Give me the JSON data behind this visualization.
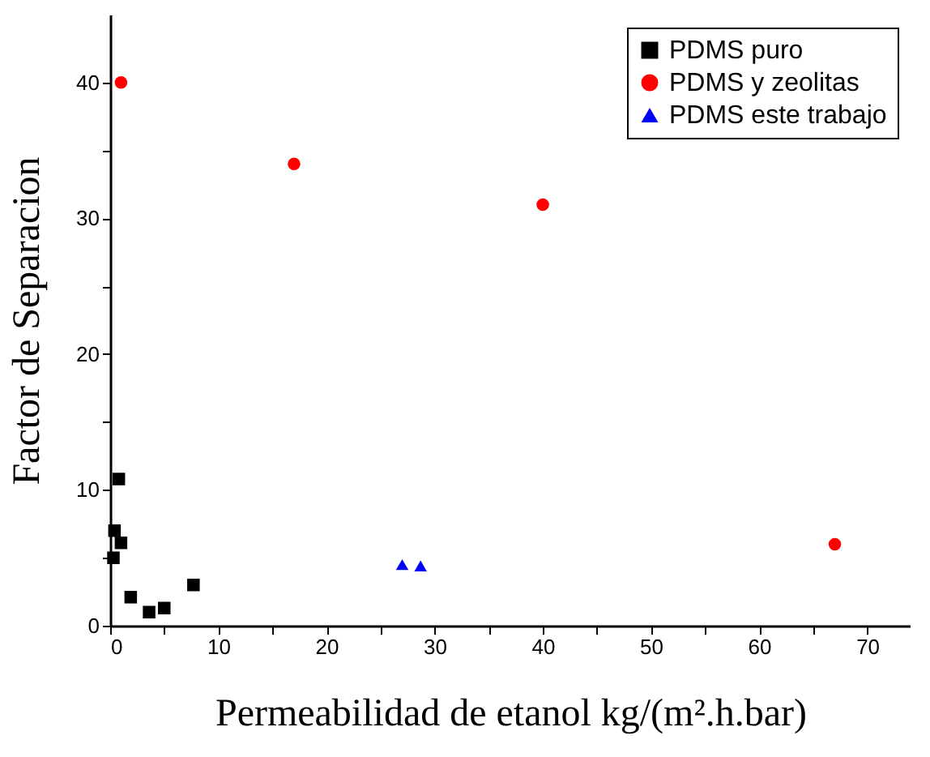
{
  "chart_data": {
    "type": "scatter",
    "xlabel": "Permeabilidad de etanol kg/(m².h.bar)",
    "ylabel": "Factor de Separacion",
    "xlim": [
      0,
      74
    ],
    "ylim": [
      0,
      45
    ],
    "xticks": [
      0,
      {
        "value": 5,
        "label": null
      },
      10,
      {
        "value": 15,
        "label": null
      },
      20,
      {
        "value": 25,
        "label": null
      },
      30,
      {
        "value": 35,
        "label": null
      },
      40,
      {
        "value": 45,
        "label": null
      },
      50,
      {
        "value": 55,
        "label": null
      },
      60,
      {
        "value": 65,
        "label": null
      },
      70
    ],
    "yticks": [
      0,
      {
        "value": 5,
        "label": null
      },
      10,
      {
        "value": 15,
        "label": null
      },
      20,
      {
        "value": 25,
        "label": null
      },
      30,
      {
        "value": 35,
        "label": null
      },
      40
    ],
    "grid": false,
    "legend": "top right",
    "series": [
      {
        "name": "PDMS puro",
        "color": "#000000",
        "marker": "square",
        "x": [
          0.8,
          0.3,
          0.4,
          1.0,
          1.9,
          3.6,
          5.0,
          7.7
        ],
        "values": [
          10.8,
          5,
          7,
          6.1,
          2.1,
          1.0,
          1.3,
          3.0
        ]
      },
      {
        "name": "PDMS y zeolitas",
        "color": "#ff0000",
        "marker": "circle",
        "x": [
          1,
          17,
          40,
          67
        ],
        "values": [
          40,
          34,
          31,
          6
        ]
      },
      {
        "name": "PDMS este trabajo",
        "color": "#0000ff",
        "marker": "triangle",
        "x": [
          27,
          28.7
        ],
        "values": [
          4.5,
          4.4
        ]
      }
    ]
  }
}
